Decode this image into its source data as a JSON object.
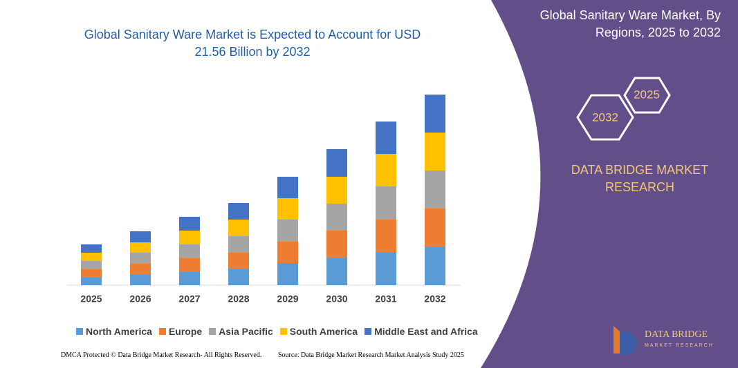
{
  "chart_data": {
    "type": "stacked_bar",
    "title": "Global Sanitary Ware Market is Expected to Account for USD 21.56 Billion by 2032",
    "categories": [
      "2025",
      "2026",
      "2027",
      "2028",
      "2029",
      "2030",
      "2031",
      "2032"
    ],
    "series": [
      {
        "name": "North America",
        "color": "#5b9bd5",
        "values": [
          11,
          15,
          19,
          23,
          32,
          39,
          47,
          55
        ]
      },
      {
        "name": "Europe",
        "color": "#ed7d31",
        "values": [
          12,
          16,
          20,
          24,
          31,
          40,
          48,
          56
        ]
      },
      {
        "name": "Asia Pacific",
        "color": "#a5a5a5",
        "values": [
          12,
          16,
          20,
          24,
          32,
          39,
          48,
          55
        ]
      },
      {
        "name": "South America",
        "color": "#ffc000",
        "values": [
          12,
          15,
          20,
          24,
          31,
          39,
          47,
          55
        ]
      },
      {
        "name": "Middle East and Africa",
        "color": "#4472c4",
        "values": [
          12,
          16,
          20,
          24,
          31,
          40,
          47,
          55
        ]
      }
    ],
    "ylim": [
      0,
      276
    ]
  },
  "panel": {
    "title": "Global Sanitary Ware Market, By Regions, 2025 to 2032",
    "hex_end": "2032",
    "hex_start": "2025",
    "brand": "DATA BRIDGE MARKET RESEARCH",
    "logo_top": "DATA BRIDGE",
    "logo_bottom": "MARKET RESEARCH"
  },
  "footer": {
    "left": "DMCA Protected © Data Bridge Market Research- All Rights Reserved.",
    "right": "Source: Data Bridge Market Research Market Analysis Study 2025"
  }
}
